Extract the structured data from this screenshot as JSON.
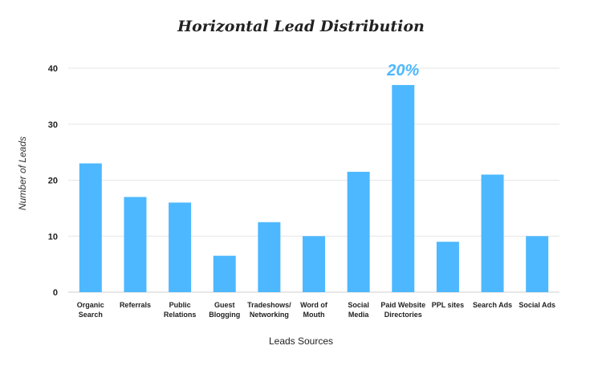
{
  "chart_data": {
    "type": "bar",
    "title": "Horizontal Lead Distribution",
    "xlabel": "Leads Sources",
    "ylabel": "Number of Leads",
    "ylim": [
      0,
      40
    ],
    "yticks": [
      0,
      10,
      20,
      30,
      40
    ],
    "grid": true,
    "bar_color": "#4db8ff",
    "categories": [
      [
        "Organic",
        "Search"
      ],
      [
        "Referrals"
      ],
      [
        "Public",
        "Relations"
      ],
      [
        "Guest",
        "Blogging"
      ],
      [
        "Tradeshows/",
        "Networking"
      ],
      [
        "Word of",
        "Mouth"
      ],
      [
        "Social",
        "Media"
      ],
      [
        "Paid Website",
        "Directories"
      ],
      [
        "PPL sites"
      ],
      [
        "Search Ads"
      ],
      [
        "Social Ads"
      ]
    ],
    "values": [
      23,
      17,
      16,
      6.5,
      12.5,
      10,
      21.5,
      37,
      9,
      21,
      10
    ],
    "annotations": [
      {
        "category_index": 7,
        "text": "20%",
        "color": "#4db8ff"
      }
    ]
  }
}
